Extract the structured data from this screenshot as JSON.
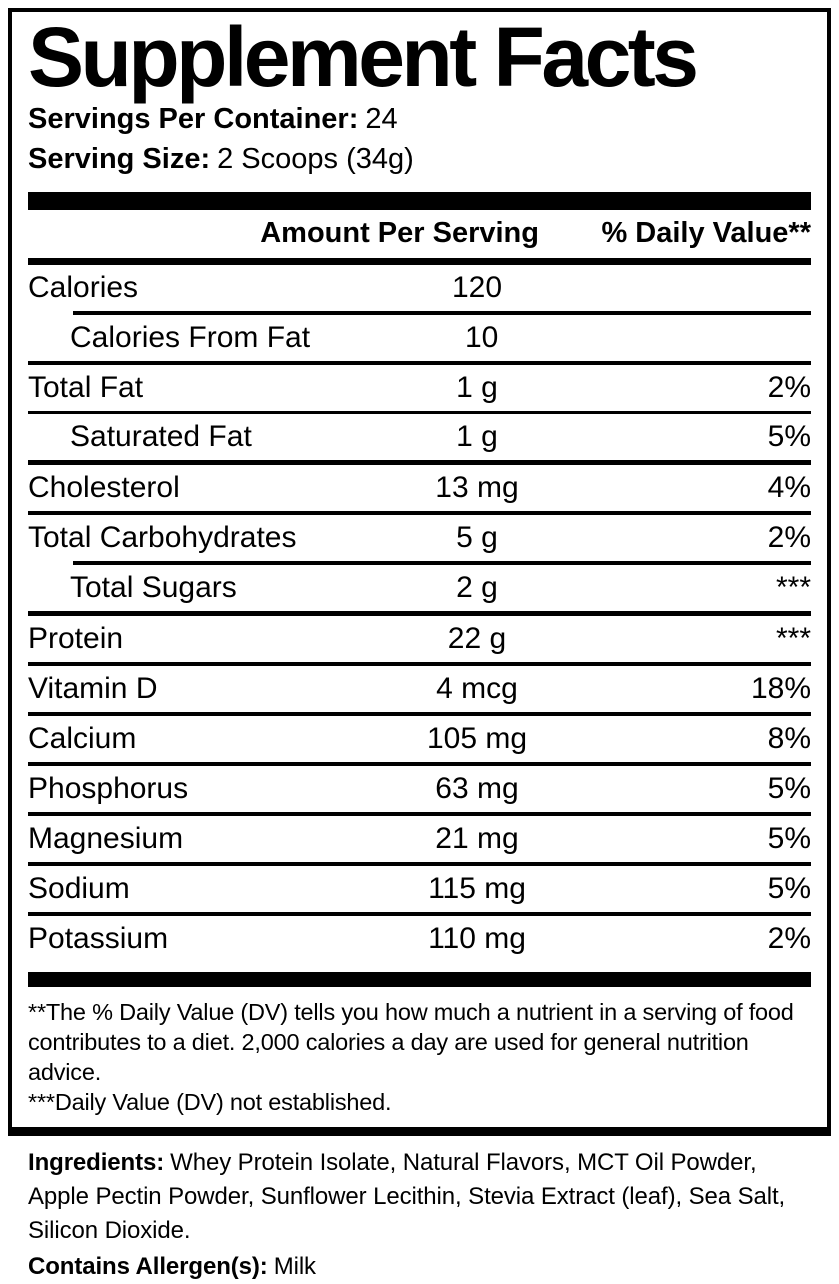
{
  "label": {
    "title": "Supplement Facts",
    "servings_per_container": {
      "label": "Servings Per Container:",
      "value": "24"
    },
    "serving_size": {
      "label": "Serving Size:",
      "value": "2 Scoops (34g)"
    },
    "columns": {
      "amount": "Amount Per Serving",
      "dv": "% Daily Value**"
    },
    "rows": [
      {
        "name": "Calories",
        "amount": "120",
        "dv": "",
        "indent": false,
        "divider": "xthick"
      },
      {
        "name": "Calories From Fat",
        "amount": "10",
        "dv": "",
        "indent": true,
        "divider": "indent"
      },
      {
        "name": "Total Fat",
        "amount": "1 g",
        "dv": "2%",
        "indent": false,
        "divider": "medium"
      },
      {
        "name": "Saturated Fat",
        "amount": "1 g",
        "dv": "5%",
        "indent": true,
        "divider": "thin"
      },
      {
        "name": "Cholesterol",
        "amount": "13 mg",
        "dv": "4%",
        "indent": false,
        "divider": "heavy"
      },
      {
        "name": "Total Carbohydrates",
        "amount": "5 g",
        "dv": "2%",
        "indent": false,
        "divider": "medium"
      },
      {
        "name": "Total Sugars",
        "amount": "2 g",
        "dv": "***",
        "indent": true,
        "divider": "indent"
      },
      {
        "name": "Protein",
        "amount": "22 g",
        "dv": "***",
        "indent": false,
        "divider": "heavy"
      },
      {
        "name": "Vitamin D",
        "amount": "4 mcg",
        "dv": "18%",
        "indent": false,
        "divider": "medium"
      },
      {
        "name": "Calcium",
        "amount": "105 mg",
        "dv": "8%",
        "indent": false,
        "divider": "medium"
      },
      {
        "name": "Phosphorus",
        "amount": "63 mg",
        "dv": "5%",
        "indent": false,
        "divider": "medium"
      },
      {
        "name": "Magnesium",
        "amount": "21 mg",
        "dv": "5%",
        "indent": false,
        "divider": "medium"
      },
      {
        "name": "Sodium",
        "amount": "115 mg",
        "dv": "5%",
        "indent": false,
        "divider": "medium"
      },
      {
        "name": "Potassium",
        "amount": "110 mg",
        "dv": "2%",
        "indent": false,
        "divider": "medium"
      }
    ],
    "footnotes": [
      "**The % Daily Value (DV) tells you how much a nutrient in a serving of food contributes to a diet. 2,000 calories a day are used for general nutrition advice.",
      "***Daily Value (DV) not established."
    ]
  },
  "ingredients": {
    "label": "Ingredients:",
    "text": "Whey Protein Isolate, Natural Flavors, MCT Oil Powder, Apple Pectin Powder, Sunflower Lecithin, Stevia Extract (leaf), Sea Salt, Silicon Dioxide.",
    "allergen_label": "Contains Allergen(s):",
    "allergen_value": "Milk"
  },
  "colors": {
    "background": "#ffffff",
    "text": "#000000",
    "bar": "#000000"
  }
}
